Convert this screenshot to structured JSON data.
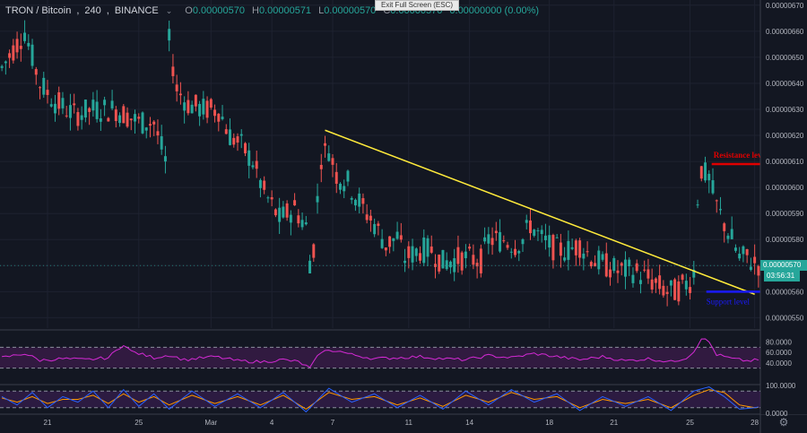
{
  "header": {
    "symbol": "TRON / Bitcoin",
    "interval": "240",
    "exchange": "BINANCE",
    "ohlc": [
      {
        "key": "O",
        "value": "0.00000570"
      },
      {
        "key": "H",
        "value": "0.00000571"
      },
      {
        "key": "L",
        "value": "0.00000570"
      },
      {
        "key": "C",
        "value": "0.00000570"
      }
    ],
    "change": "0.00000000 (0.00%)"
  },
  "tooltip": "Exit Full Screen (ESC)",
  "colors": {
    "background": "#131722",
    "up": "#26a69a",
    "down": "#ef5350",
    "grid": "#1e2230",
    "axis_text": "#b2b5be",
    "trendline": "#ffeb3b",
    "resistance": "#e00000",
    "support": "#1a1aff",
    "rsi_line": "#d62ad6",
    "rsi_band": "#4a1e5a",
    "stoch_band": "#3d1e57",
    "stoch_k": "#2962ff",
    "stoch_d": "#ff9800"
  },
  "icons": {
    "settings": "gear-icon",
    "dropdown": "chevron-down-icon"
  },
  "chart_data": {
    "type": "candlestick",
    "title": "TRON / Bitcoin, 240, BINANCE",
    "price_axis": {
      "ticks": [
        "0.00000670",
        "0.00000660",
        "0.00000650",
        "0.00000640",
        "0.00000630",
        "0.00000620",
        "0.00000610",
        "0.00000600",
        "0.00000590",
        "0.00000580",
        "0.00000570",
        "0.00000560",
        "0.00000550"
      ],
      "ylim": [
        5.46e-06,
        6.72e-06
      ]
    },
    "time_axis": {
      "labels": [
        "21",
        "25",
        "Mar",
        "4",
        "7",
        "11",
        "14",
        "18",
        "21",
        "25",
        "28"
      ]
    },
    "last_price": "0.00000570",
    "countdown": "03:56:31",
    "price_path": [
      [
        0,
        6.46
      ],
      [
        6,
        6.6
      ],
      [
        10,
        6.4
      ],
      [
        14,
        6.33
      ],
      [
        19,
        6.28
      ],
      [
        24,
        6.3
      ],
      [
        30,
        6.3
      ],
      [
        36,
        6.25
      ],
      [
        40,
        6.25
      ],
      [
        42,
        6.15
      ],
      [
        43,
        6.1
      ],
      [
        44,
        6.56
      ],
      [
        46,
        6.38
      ],
      [
        49,
        6.32
      ],
      [
        53,
        6.3
      ],
      [
        57,
        6.3
      ],
      [
        60,
        6.2
      ],
      [
        63,
        6.16
      ],
      [
        66,
        6.1
      ],
      [
        69,
        5.98
      ],
      [
        73,
        5.88
      ],
      [
        77,
        5.92
      ],
      [
        80,
        5.85
      ],
      [
        81,
        5.72
      ],
      [
        82,
        5.77
      ],
      [
        83,
        5.95
      ],
      [
        84,
        6.12
      ],
      [
        86,
        6.15
      ],
      [
        88,
        6.05
      ],
      [
        91,
        6.02
      ],
      [
        95,
        5.92
      ],
      [
        98,
        5.86
      ],
      [
        101,
        5.78
      ],
      [
        104,
        5.81
      ],
      [
        106,
        5.73
      ],
      [
        110,
        5.76
      ],
      [
        113,
        5.76
      ],
      [
        116,
        5.71
      ],
      [
        121,
        5.73
      ],
      [
        126,
        5.72
      ],
      [
        128,
        5.8
      ],
      [
        132,
        5.8
      ],
      [
        135,
        5.78
      ],
      [
        137,
        5.8
      ],
      [
        139,
        5.86
      ],
      [
        142,
        5.8
      ],
      [
        146,
        5.76
      ],
      [
        149,
        5.76
      ],
      [
        152,
        5.78
      ],
      [
        156,
        5.72
      ],
      [
        159,
        5.7
      ],
      [
        162,
        5.68
      ],
      [
        166,
        5.68
      ],
      [
        170,
        5.65
      ],
      [
        173,
        5.62
      ],
      [
        175,
        5.6
      ],
      [
        177,
        5.6
      ],
      [
        179,
        5.62
      ],
      [
        181,
        5.64
      ],
      [
        182,
        5.68
      ],
      [
        183,
        5.96
      ],
      [
        184,
        6.07
      ],
      [
        186,
        6.03
      ],
      [
        188,
        5.93
      ],
      [
        190,
        5.86
      ],
      [
        192,
        5.8
      ],
      [
        194,
        5.73
      ],
      [
        196,
        5.73
      ],
      [
        198,
        5.71
      ],
      [
        200,
        5.7
      ]
    ],
    "rsi": {
      "ticks": [
        "80.0000",
        "60.0000",
        "40.0000"
      ],
      "ylim": [
        0,
        100
      ],
      "overbought": 70,
      "oversold": 30,
      "path": [
        [
          0,
          50
        ],
        [
          6,
          58
        ],
        [
          10,
          45
        ],
        [
          16,
          48
        ],
        [
          22,
          46
        ],
        [
          28,
          50
        ],
        [
          32,
          76
        ],
        [
          34,
          62
        ],
        [
          40,
          50
        ],
        [
          44,
          55
        ],
        [
          48,
          46
        ],
        [
          56,
          52
        ],
        [
          62,
          44
        ],
        [
          68,
          42
        ],
        [
          74,
          46
        ],
        [
          78,
          42
        ],
        [
          81,
          30
        ],
        [
          84,
          62
        ],
        [
          88,
          64
        ],
        [
          92,
          56
        ],
        [
          98,
          48
        ],
        [
          104,
          50
        ],
        [
          110,
          52
        ],
        [
          116,
          48
        ],
        [
          122,
          46
        ],
        [
          128,
          54
        ],
        [
          134,
          50
        ],
        [
          140,
          58
        ],
        [
          146,
          52
        ],
        [
          152,
          46
        ],
        [
          158,
          52
        ],
        [
          164,
          44
        ],
        [
          170,
          48
        ],
        [
          176,
          42
        ],
        [
          180,
          50
        ],
        [
          182,
          62
        ],
        [
          184,
          88
        ],
        [
          186,
          80
        ],
        [
          188,
          56
        ],
        [
          192,
          48
        ],
        [
          196,
          44
        ],
        [
          200,
          46
        ]
      ]
    },
    "stoch": {
      "ticks": [
        "100.0000",
        "0.0000"
      ],
      "ylim": [
        0,
        100
      ],
      "upper": 80,
      "lower": 20,
      "k_path": [
        [
          0,
          60
        ],
        [
          4,
          30
        ],
        [
          8,
          75
        ],
        [
          12,
          20
        ],
        [
          16,
          60
        ],
        [
          20,
          40
        ],
        [
          24,
          80
        ],
        [
          28,
          20
        ],
        [
          32,
          85
        ],
        [
          36,
          25
        ],
        [
          40,
          70
        ],
        [
          44,
          15
        ],
        [
          50,
          80
        ],
        [
          56,
          25
        ],
        [
          62,
          70
        ],
        [
          68,
          20
        ],
        [
          74,
          75
        ],
        [
          80,
          5
        ],
        [
          86,
          90
        ],
        [
          92,
          40
        ],
        [
          98,
          70
        ],
        [
          104,
          20
        ],
        [
          110,
          65
        ],
        [
          116,
          15
        ],
        [
          122,
          80
        ],
        [
          128,
          30
        ],
        [
          134,
          85
        ],
        [
          140,
          40
        ],
        [
          146,
          70
        ],
        [
          152,
          10
        ],
        [
          158,
          60
        ],
        [
          164,
          25
        ],
        [
          170,
          60
        ],
        [
          176,
          10
        ],
        [
          182,
          80
        ],
        [
          186,
          95
        ],
        [
          190,
          60
        ],
        [
          194,
          15
        ],
        [
          198,
          20
        ],
        [
          200,
          25
        ]
      ],
      "d_path": [
        [
          0,
          55
        ],
        [
          4,
          40
        ],
        [
          8,
          60
        ],
        [
          12,
          35
        ],
        [
          16,
          50
        ],
        [
          20,
          50
        ],
        [
          24,
          65
        ],
        [
          28,
          35
        ],
        [
          32,
          70
        ],
        [
          36,
          40
        ],
        [
          40,
          60
        ],
        [
          44,
          30
        ],
        [
          50,
          65
        ],
        [
          56,
          35
        ],
        [
          62,
          60
        ],
        [
          68,
          30
        ],
        [
          74,
          65
        ],
        [
          80,
          15
        ],
        [
          86,
          75
        ],
        [
          92,
          50
        ],
        [
          98,
          60
        ],
        [
          104,
          30
        ],
        [
          110,
          55
        ],
        [
          116,
          25
        ],
        [
          122,
          65
        ],
        [
          128,
          40
        ],
        [
          134,
          75
        ],
        [
          140,
          50
        ],
        [
          146,
          60
        ],
        [
          152,
          20
        ],
        [
          158,
          50
        ],
        [
          164,
          35
        ],
        [
          170,
          50
        ],
        [
          176,
          20
        ],
        [
          182,
          65
        ],
        [
          186,
          85
        ],
        [
          190,
          75
        ],
        [
          194,
          30
        ],
        [
          198,
          20
        ],
        [
          200,
          22
        ]
      ]
    },
    "annotations": {
      "trendline": {
        "from": [
          85,
          6.22
        ],
        "to": [
          198,
          5.59
        ]
      },
      "resistance": {
        "label": "Resistance level",
        "price": 6.09,
        "x_from": 190,
        "x_to": 200
      },
      "support": {
        "label": "Support level",
        "price": 5.6,
        "x_from": 190,
        "x_to": 200
      }
    }
  }
}
